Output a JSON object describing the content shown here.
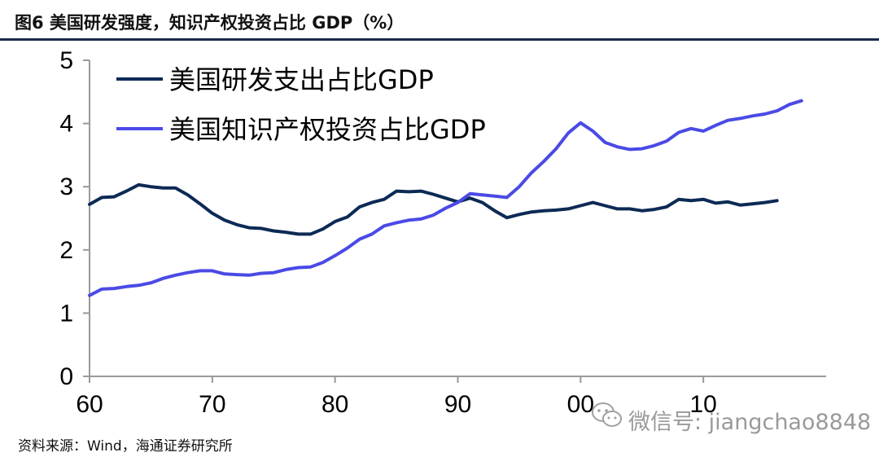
{
  "header": {
    "title": "图6  美国研发强度，知识产权投资占比 GDP（%）"
  },
  "footer": {
    "source": "资料来源：Wind，海通证券研究所"
  },
  "watermark": {
    "text": "微信号: jiangchao8848"
  },
  "colors": {
    "series1": "#0d2a55",
    "series2": "#4a4ae6",
    "rule": "#1a2a4a",
    "axis": "#9a9a9a"
  },
  "chart_data": {
    "type": "line",
    "title": "",
    "xlabel": "",
    "ylabel": "",
    "xlim": [
      1960,
      2020
    ],
    "ylim": [
      0,
      5
    ],
    "grid": false,
    "legend_position": "top-left",
    "x_ticks": [
      1960,
      1970,
      1980,
      1990,
      2000,
      2010
    ],
    "x_tick_labels": [
      "60",
      "70",
      "80",
      "90",
      "00",
      "10"
    ],
    "y_ticks": [
      0,
      1,
      2,
      3,
      4,
      5
    ],
    "y_tick_labels": [
      "0",
      "1",
      "2",
      "3",
      "4",
      "5"
    ],
    "series": [
      {
        "name": "美国研发支出占比GDP",
        "color": "#0d2a55",
        "x": [
          1960,
          1961,
          1962,
          1963,
          1964,
          1965,
          1966,
          1967,
          1968,
          1969,
          1970,
          1971,
          1972,
          1973,
          1974,
          1975,
          1976,
          1977,
          1978,
          1979,
          1980,
          1981,
          1982,
          1983,
          1984,
          1985,
          1986,
          1987,
          1988,
          1989,
          1990,
          1991,
          1992,
          1993,
          1994,
          1995,
          1996,
          1997,
          1998,
          1999,
          2000,
          2001,
          2002,
          2003,
          2004,
          2005,
          2006,
          2007,
          2008,
          2009,
          2010,
          2011,
          2012,
          2013,
          2014,
          2015,
          2016
        ],
        "values": [
          2.72,
          2.83,
          2.84,
          2.93,
          3.03,
          3.0,
          2.98,
          2.98,
          2.87,
          2.73,
          2.58,
          2.47,
          2.4,
          2.35,
          2.34,
          2.3,
          2.28,
          2.25,
          2.25,
          2.33,
          2.45,
          2.52,
          2.68,
          2.75,
          2.8,
          2.93,
          2.92,
          2.93,
          2.88,
          2.82,
          2.76,
          2.82,
          2.75,
          2.62,
          2.51,
          2.56,
          2.6,
          2.62,
          2.63,
          2.65,
          2.7,
          2.75,
          2.7,
          2.65,
          2.65,
          2.62,
          2.64,
          2.68,
          2.8,
          2.78,
          2.8,
          2.74,
          2.76,
          2.71,
          2.73,
          2.75,
          2.78
        ]
      },
      {
        "name": "美国知识产权投资占比GDP",
        "color": "#4a4ae6",
        "x": [
          1960,
          1961,
          1962,
          1963,
          1964,
          1965,
          1966,
          1967,
          1968,
          1969,
          1970,
          1971,
          1972,
          1973,
          1974,
          1975,
          1976,
          1977,
          1978,
          1979,
          1980,
          1981,
          1982,
          1983,
          1984,
          1985,
          1986,
          1987,
          1988,
          1989,
          1990,
          1991,
          1992,
          1993,
          1994,
          1995,
          1996,
          1997,
          1998,
          1999,
          2000,
          2001,
          2002,
          2003,
          2004,
          2005,
          2006,
          2007,
          2008,
          2009,
          2010,
          2011,
          2012,
          2013,
          2014,
          2015,
          2016,
          2017,
          2018
        ],
        "values": [
          1.28,
          1.38,
          1.39,
          1.42,
          1.44,
          1.48,
          1.55,
          1.6,
          1.64,
          1.67,
          1.67,
          1.62,
          1.61,
          1.6,
          1.63,
          1.64,
          1.69,
          1.72,
          1.73,
          1.8,
          1.91,
          2.03,
          2.17,
          2.25,
          2.38,
          2.43,
          2.47,
          2.49,
          2.55,
          2.66,
          2.75,
          2.89,
          2.87,
          2.85,
          2.83,
          3.0,
          3.22,
          3.4,
          3.6,
          3.85,
          4.01,
          3.88,
          3.7,
          3.63,
          3.59,
          3.6,
          3.65,
          3.72,
          3.86,
          3.92,
          3.88,
          3.97,
          4.05,
          4.08,
          4.12,
          4.15,
          4.2,
          4.3,
          4.36
        ]
      }
    ]
  }
}
